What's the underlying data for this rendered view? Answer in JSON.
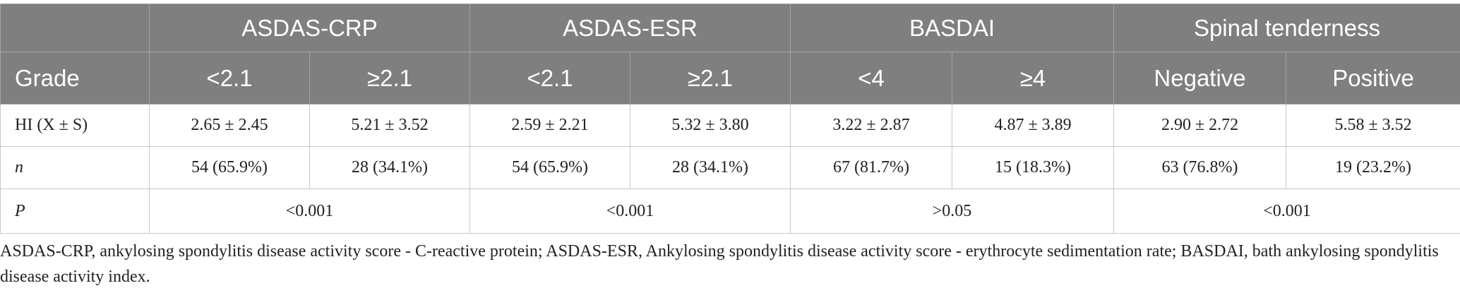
{
  "table": {
    "groups": [
      "ASDAS-CRP",
      "ASDAS-ESR",
      "BASDAI",
      "Spinal tenderness"
    ],
    "grade": {
      "label": "Grade",
      "values": [
        "<2.1",
        "≥2.1",
        "<2.1",
        "≥2.1",
        "<4",
        "≥4",
        "Negative",
        "Positive"
      ]
    },
    "hi": {
      "label": "HI (X ± S)",
      "values": [
        "2.65 ± 2.45",
        "5.21 ± 3.52",
        "2.59 ± 2.21",
        "5.32 ± 3.80",
        "3.22 ± 2.87",
        "4.87 ± 3.89",
        "2.90 ± 2.72",
        "5.58 ± 3.52"
      ]
    },
    "n": {
      "label": "n",
      "values": [
        "54 (65.9%)",
        "28 (34.1%)",
        "54 (65.9%)",
        "28 (34.1%)",
        "67 (81.7%)",
        "15 (18.3%)",
        "63 (76.8%)",
        "19 (23.2%)"
      ]
    },
    "p": {
      "label": "P",
      "values": [
        "<0.001",
        "<0.001",
        ">0.05",
        "<0.001"
      ]
    }
  },
  "footnote": "ASDAS-CRP, ankylosing spondylitis disease activity score - C-reactive protein; ASDAS-ESR, Ankylosing spondylitis disease activity score - erythrocyte sedimentation rate; BASDAI, bath ankylosing spondylitis disease activity index.",
  "colors": {
    "header_background": "#7f7f7f",
    "header_text": "#ffffff",
    "border": "#c8c8c8",
    "body_text": "#231f20"
  }
}
